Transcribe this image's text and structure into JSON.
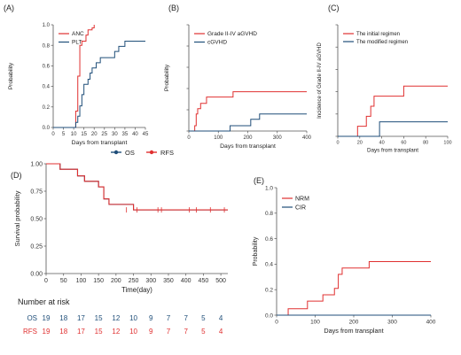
{
  "colors": {
    "red": "#e03030",
    "blue": "#1f4e79",
    "axis": "#555555"
  },
  "chart_data": [
    {
      "panel_label": "(A)",
      "type": "line",
      "step": true,
      "xlabel": "Days from transplant",
      "ylabel": "Probability",
      "xlim": [
        0,
        45
      ],
      "ylim": [
        0,
        1.0
      ],
      "xticks": [
        "0",
        "5",
        "10",
        "15",
        "20",
        "25",
        "30",
        "35",
        "40",
        "45"
      ],
      "yticks": [
        "0.0",
        "0.2",
        "0.4",
        "0.6",
        "0.8",
        "1.0"
      ],
      "legend": "top-left",
      "series": [
        {
          "name": "ANC",
          "color": "#e03030",
          "x": [
            0,
            11,
            12,
            13,
            14,
            16,
            17,
            19,
            20
          ],
          "y": [
            0,
            0.16,
            0.5,
            0.8,
            0.84,
            0.9,
            0.95,
            0.97,
            1.0
          ]
        },
        {
          "name": "PLT",
          "color": "#1f4e79",
          "x": [
            0,
            11,
            12,
            13,
            14,
            15,
            17,
            18,
            19,
            21,
            23,
            24,
            26,
            30,
            32,
            35,
            45
          ],
          "y": [
            0,
            0.05,
            0.11,
            0.21,
            0.32,
            0.42,
            0.47,
            0.53,
            0.58,
            0.63,
            0.68,
            0.68,
            0.68,
            0.74,
            0.79,
            0.84,
            0.84
          ]
        }
      ]
    },
    {
      "panel_label": "(B)",
      "type": "line",
      "step": true,
      "xlabel": "Days from transplant",
      "ylabel": "Probability",
      "xlim": [
        0,
        400
      ],
      "ylim": [
        0,
        1.0
      ],
      "xticks": [
        "0",
        "100",
        "200",
        "300",
        "400"
      ],
      "legend": "top-left",
      "series": [
        {
          "name": "Grade II-IV aGVHD",
          "color": "#e03030",
          "x": [
            0,
            20,
            25,
            30,
            40,
            60,
            150,
            400
          ],
          "y": [
            0,
            0.05,
            0.16,
            0.21,
            0.26,
            0.32,
            0.37,
            0.37
          ]
        },
        {
          "name": "cGVHD",
          "color": "#1f4e79",
          "x": [
            0,
            140,
            210,
            240,
            400
          ],
          "y": [
            0,
            0.05,
            0.11,
            0.16,
            0.16
          ]
        }
      ]
    },
    {
      "panel_label": "(C)",
      "type": "line",
      "step": true,
      "xlabel": "Days from transplant",
      "ylabel": "Incidence of Grade II-IV aGVHD",
      "xlim": [
        0,
        100
      ],
      "ylim": [
        0,
        1.0
      ],
      "xticks": [
        "0",
        "20",
        "40",
        "60",
        "80",
        "100"
      ],
      "legend": "top-left",
      "series": [
        {
          "name": "The initial regimen",
          "color": "#e03030",
          "x": [
            0,
            18,
            26,
            30,
            33,
            40,
            60,
            100
          ],
          "y": [
            0,
            0.09,
            0.18,
            0.27,
            0.36,
            0.36,
            0.45,
            0.45
          ]
        },
        {
          "name": "The modified regimen",
          "color": "#1f4e79",
          "x": [
            0,
            38,
            100
          ],
          "y": [
            0,
            0.13,
            0.13
          ]
        }
      ]
    },
    {
      "panel_label": "(D)",
      "type": "line",
      "step": true,
      "xlabel": "Time(day)",
      "ylabel": "Survival probability",
      "xlim": [
        0,
        520
      ],
      "ylim": [
        0,
        1.0
      ],
      "xticks": [
        "0",
        "50",
        "100",
        "150",
        "200",
        "250",
        "300",
        "350",
        "400",
        "450",
        "500"
      ],
      "yticks": [
        "0.00",
        "0.25",
        "0.50",
        "0.75",
        "1.00"
      ],
      "legend": "top-center",
      "series": [
        {
          "name": "OS",
          "color": "#1f4e79",
          "x": [
            0,
            40,
            90,
            110,
            150,
            165,
            180,
            250,
            520
          ],
          "y": [
            1.0,
            0.95,
            0.89,
            0.84,
            0.79,
            0.68,
            0.63,
            0.58,
            0.58
          ]
        },
        {
          "name": "RFS",
          "color": "#e03030",
          "x": [
            0,
            40,
            90,
            110,
            150,
            165,
            180,
            250,
            520
          ],
          "y": [
            1.0,
            0.95,
            0.89,
            0.84,
            0.79,
            0.68,
            0.63,
            0.58,
            0.58
          ]
        }
      ],
      "censor_x": [
        230,
        260,
        320,
        330,
        410,
        430,
        470,
        510
      ],
      "risk_table": {
        "title": "Number at risk",
        "rows": [
          {
            "name": "OS",
            "color": "#1f4e79",
            "values": [
              "19",
              "18",
              "17",
              "15",
              "12",
              "10",
              "9",
              "7",
              "7",
              "5",
              "4"
            ]
          },
          {
            "name": "RFS",
            "color": "#e03030",
            "values": [
              "19",
              "18",
              "17",
              "15",
              "12",
              "10",
              "9",
              "7",
              "7",
              "5",
              "4"
            ]
          }
        ]
      }
    },
    {
      "panel_label": "(E)",
      "type": "line",
      "step": true,
      "xlabel": "Days from transplant",
      "ylabel": "Probability",
      "xlim": [
        0,
        400
      ],
      "ylim": [
        0,
        1.0
      ],
      "xticks": [
        "0",
        "100",
        "200",
        "300",
        "400"
      ],
      "yticks": [
        "0.0",
        "0.2",
        "0.4",
        "0.6",
        "0.8",
        "1.0"
      ],
      "legend": "top-left",
      "series": [
        {
          "name": "NRM",
          "color": "#e03030",
          "x": [
            0,
            30,
            80,
            120,
            150,
            160,
            170,
            240,
            400
          ],
          "y": [
            0,
            0.05,
            0.11,
            0.16,
            0.21,
            0.32,
            0.37,
            0.42,
            0.42
          ]
        },
        {
          "name": "CIR",
          "color": "#1f4e79",
          "x": [
            0,
            400
          ],
          "y": [
            0,
            0
          ]
        }
      ]
    }
  ]
}
